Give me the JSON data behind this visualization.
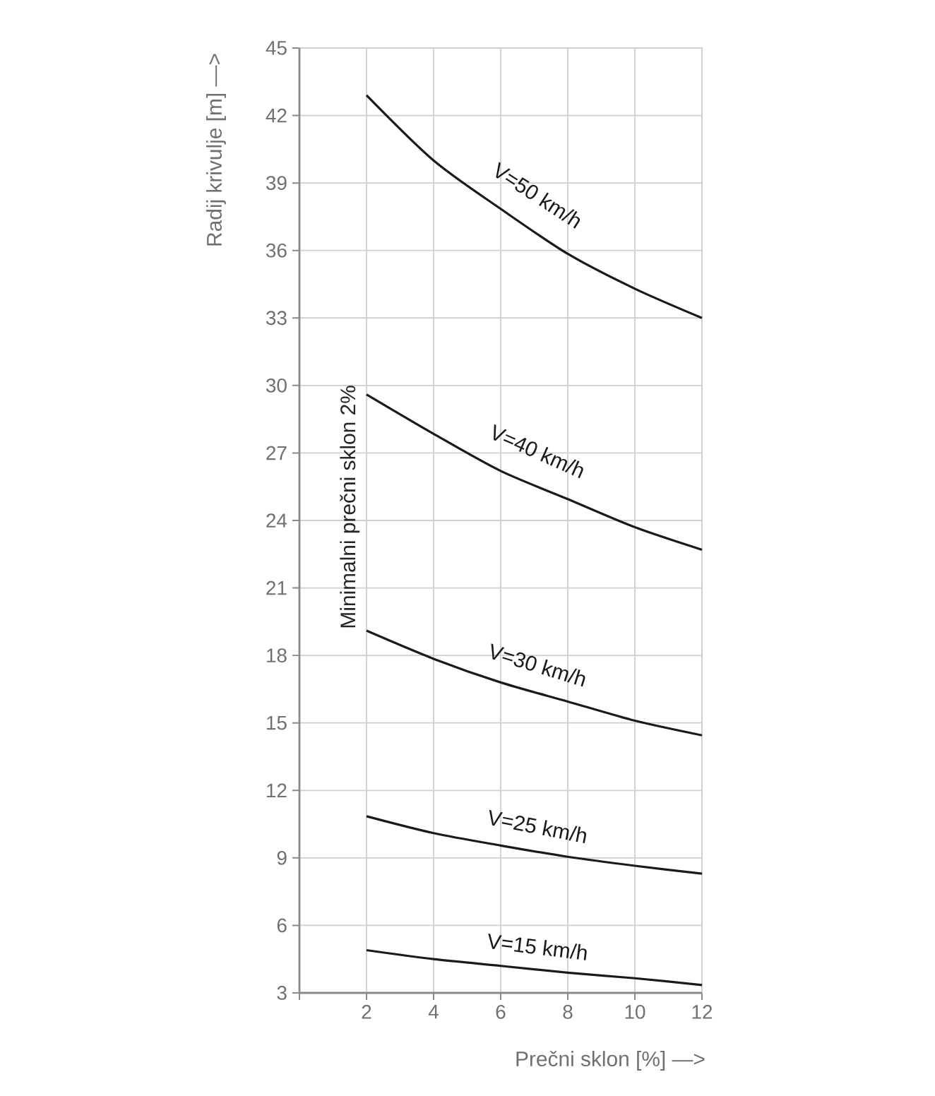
{
  "chart_data": {
    "type": "line",
    "xlabel": "Prečni sklon [%] —>",
    "ylabel": "Radij krivulje [m] —>",
    "annotations": [
      "Minimalni prečni sklon 2%"
    ],
    "x": [
      2,
      4,
      6,
      8,
      10,
      12
    ],
    "series": [
      {
        "name": "V=50 km/h",
        "color": "#1a1a1a",
        "values": [
          42.9,
          40.0,
          37.85,
          35.85,
          34.3,
          33.0
        ]
      },
      {
        "name": "V=40 km/h",
        "color": "#1a1a1a",
        "values": [
          29.6,
          27.85,
          26.2,
          24.95,
          23.7,
          22.7
        ]
      },
      {
        "name": "V=30 km/h",
        "color": "#1a1a1a",
        "values": [
          19.1,
          17.85,
          16.8,
          15.95,
          15.1,
          14.45
        ]
      },
      {
        "name": "V=25 km/h",
        "color": "#1a1a1a",
        "values": [
          10.85,
          10.1,
          9.55,
          9.05,
          8.65,
          8.3
        ]
      },
      {
        "name": "V=15 km/h",
        "color": "#1a1a1a",
        "values": [
          4.9,
          4.5,
          4.2,
          3.9,
          3.65,
          3.35
        ]
      }
    ],
    "xlim": [
      0,
      12
    ],
    "ylim": [
      3,
      45
    ],
    "xticks": [
      {
        "value": 0,
        "label": null
      },
      2,
      4,
      6,
      8,
      10,
      12
    ],
    "yticks": [
      3,
      6,
      9,
      12,
      15,
      18,
      21,
      24,
      27,
      30,
      33,
      36,
      39,
      42,
      45
    ],
    "grid": true,
    "legend": false,
    "marker": "none",
    "line_style": "solid"
  }
}
